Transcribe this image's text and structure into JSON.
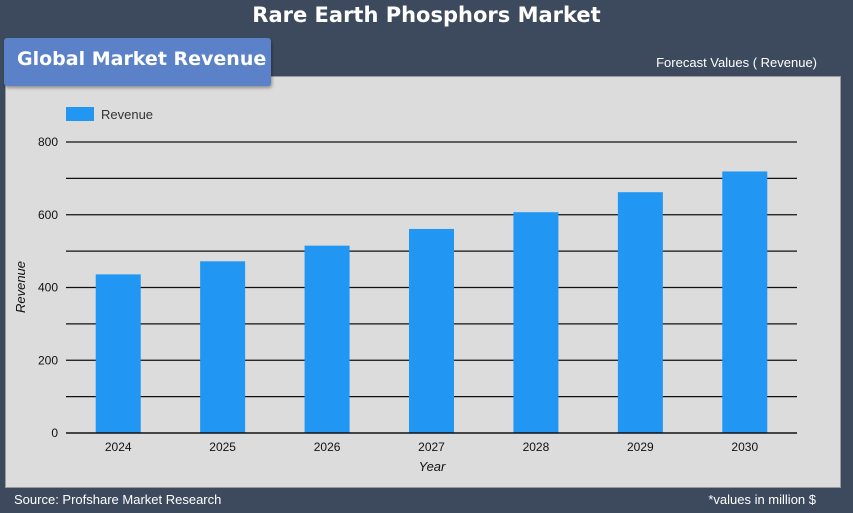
{
  "header": {
    "title": "Rare Earth Phosphors Market"
  },
  "badge": {
    "label": "Global Market Revenue"
  },
  "forecast_note": "Forecast Values ( Revenue)",
  "footer": {
    "source": "Source: Profshare Market Research",
    "units_note": "*values in million $"
  },
  "colors": {
    "bar": "#2196f3",
    "background": "#3d4a5e",
    "panel": "#dcdcdc",
    "badge": "#5b82c8"
  },
  "chart_data": {
    "type": "bar",
    "categories": [
      "2024",
      "2025",
      "2026",
      "2027",
      "2028",
      "2029",
      "2030"
    ],
    "series": [
      {
        "name": "Revenue",
        "values": [
          436,
          472,
          515,
          561,
          607,
          662,
          719
        ]
      }
    ],
    "title": "",
    "xlabel": "Year",
    "ylabel": "Revenue",
    "ylim": [
      0,
      800
    ],
    "yticks": [
      0,
      200,
      400,
      600,
      800
    ],
    "grid": true,
    "legend": "top-left"
  }
}
